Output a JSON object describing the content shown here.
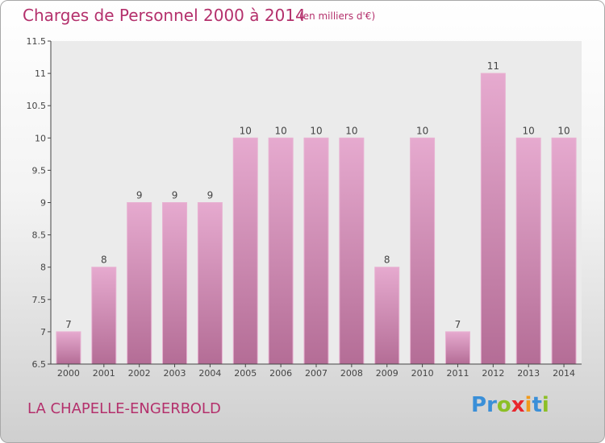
{
  "title": "Charges de Personnel 2000 à 2014",
  "subtitle": "(en milliers d'€)",
  "commune": "LA CHAPELLE-ENGERBOLD",
  "logo": {
    "text": "Proxiti",
    "letters": [
      {
        "ch": "P",
        "color": "#3a8fd8"
      },
      {
        "ch": "r",
        "color": "#3a8fd8"
      },
      {
        "ch": "o",
        "color": "#8cbf26"
      },
      {
        "ch": "x",
        "color": "#e8262d"
      },
      {
        "ch": "i",
        "color": "#f29a1c"
      },
      {
        "ch": "t",
        "color": "#3a8fd8"
      },
      {
        "ch": "i",
        "color": "#8cbf26"
      }
    ]
  },
  "colors": {
    "bar_top": "#e6aacf",
    "bar_bottom": "#b46d96",
    "bar_stroke": "#e8b2d2",
    "text_accent": "#b4306c",
    "plot_bg": "#ebebeb"
  },
  "chart_data": {
    "type": "bar",
    "title": "Charges de Personnel 2000 à 2014",
    "subtitle": "(en milliers d'€)",
    "categories": [
      "2000",
      "2001",
      "2002",
      "2003",
      "2004",
      "2005",
      "2006",
      "2007",
      "2008",
      "2009",
      "2010",
      "2011",
      "2012",
      "2013",
      "2014"
    ],
    "values": [
      7,
      8,
      9,
      9,
      9,
      10,
      10,
      10,
      10,
      8,
      10,
      7,
      11,
      10,
      10
    ],
    "ylim": [
      6.5,
      11.5
    ],
    "yticks": [
      "6.5",
      "7",
      "7.5",
      "8",
      "8.5",
      "9",
      "9.5",
      "10",
      "10.5",
      "11",
      "11.5"
    ],
    "xlabel": "",
    "ylabel": "",
    "grid": false,
    "data_labels": true
  }
}
